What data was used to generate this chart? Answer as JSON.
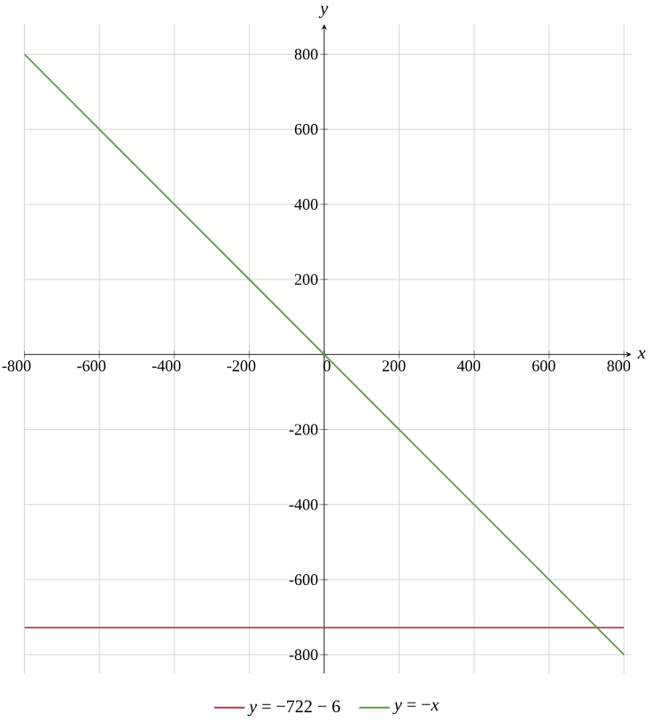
{
  "chart_data": {
    "type": "line",
    "xlabel": "x",
    "ylabel": "y",
    "x": [
      -800,
      800
    ],
    "series": [
      {
        "name": "*y* = −722 − 6",
        "color": "#b5374a",
        "values": [
          -728,
          -728
        ]
      },
      {
        "name": "*y* = −*x*",
        "color": "#5b9a4a",
        "values": [
          800,
          -800
        ]
      }
    ],
    "xlim": [
      -800,
      820
    ],
    "ylim": [
      -850,
      880
    ],
    "xticks": [
      -800,
      -600,
      -400,
      -200,
      0,
      200,
      400,
      600,
      800
    ],
    "yticks": [
      -800,
      -600,
      -400,
      -200,
      {
        "value": 0,
        "label": null
      },
      200,
      400,
      600,
      800
    ],
    "grid": true,
    "legend": "bottom",
    "marker": "none",
    "line_style": "solid"
  }
}
